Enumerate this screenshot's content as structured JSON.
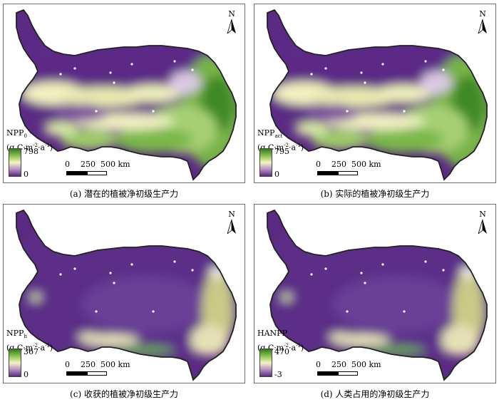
{
  "panels": [
    {
      "caption": "(a) 潜在的植被净初级生产力",
      "legend": {
        "title": "NPP",
        "title_sub": "0",
        "unit_pre": "(g C·m",
        "unit_exp1": "-2",
        "unit_mid": "·a",
        "unit_exp2": "-1",
        "unit_post": ")",
        "max": "798",
        "min": "0"
      },
      "scale": {
        "t0": "0",
        "t1": "250",
        "t2": "500 km"
      },
      "north": "N",
      "pattern": "npp"
    },
    {
      "caption": "(b) 实际的植被净初级生产力",
      "legend": {
        "title": "NPP",
        "title_sub": "act",
        "unit_pre": "(g C·m",
        "unit_exp1": "-2",
        "unit_mid": "·a",
        "unit_exp2": "-1",
        "unit_post": ")",
        "max": "795",
        "min": "0"
      },
      "scale": {
        "t0": "0",
        "t1": "250",
        "t2": "500 km"
      },
      "north": "N",
      "pattern": "npp"
    },
    {
      "caption": "(c) 收获的植被净初级生产力",
      "legend": {
        "title": "NPP",
        "title_sub": "h",
        "unit_pre": "(g C·m",
        "unit_exp1": "-2",
        "unit_mid": "·a",
        "unit_exp2": "-1",
        "unit_post": ")",
        "max": "367",
        "min": "0"
      },
      "scale": {
        "t0": "0",
        "t1": "250",
        "t2": "500 km"
      },
      "north": "N",
      "pattern": "harvest"
    },
    {
      "caption": "(d) 人类占用的净初级生产力",
      "legend": {
        "title": "HANPP",
        "title_sub": "",
        "unit_pre": "(g C·m",
        "unit_exp1": "-2",
        "unit_mid": "·a",
        "unit_exp2": "-1",
        "unit_post": ")",
        "max": "470",
        "min": "-3"
      },
      "scale": {
        "t0": "0",
        "t1": "250",
        "t2": "500 km"
      },
      "north": "N",
      "pattern": "harvest"
    }
  ],
  "colors": {
    "low": "#5a2a84",
    "mid": "#f4f3c0",
    "high": "#2f7a1c",
    "border": "#222222"
  },
  "icons": {
    "north": "north-arrow-icon"
  }
}
